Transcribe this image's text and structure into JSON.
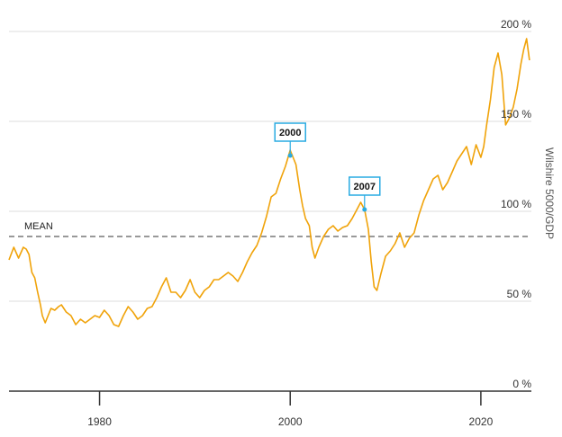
{
  "chart_data": {
    "type": "line",
    "ylabel": "Wilshire 5000/GDP",
    "ylim": [
      0,
      200
    ],
    "xlim": [
      1970.5,
      2025.3
    ],
    "y_ticks": [
      {
        "value": 0,
        "label": "0 %"
      },
      {
        "value": 50,
        "label": "50 %"
      },
      {
        "value": 100,
        "label": "100 %"
      },
      {
        "value": 150,
        "label": "150 %"
      },
      {
        "value": 200,
        "label": "200 %"
      }
    ],
    "x_ticks": [
      {
        "value": 1980,
        "label": "1980"
      },
      {
        "value": 2000,
        "label": "2000"
      },
      {
        "value": 2020,
        "label": "2020"
      }
    ],
    "grid": "horizontal",
    "y_axis_side": "right",
    "line_color": "#f0a30a",
    "reference_line": {
      "label": "MEAN",
      "value": 86,
      "color": "#999999"
    },
    "annotations": [
      {
        "label": "2000",
        "x": 2000.0,
        "y": 131,
        "color": "#29abe2"
      },
      {
        "label": "2007",
        "x": 2007.8,
        "y": 101,
        "color": "#29abe2"
      }
    ],
    "series": [
      {
        "x": [
          1970.5,
          1971.0,
          1971.5,
          1972.0,
          1972.3,
          1972.6,
          1972.9,
          1973.2,
          1973.5,
          1973.8,
          1974.0,
          1974.3,
          1974.6,
          1974.9,
          1975.3,
          1975.7,
          1976.0,
          1976.5,
          1977.0,
          1977.5,
          1978.0,
          1978.5,
          1979.0,
          1979.5,
          1980.0,
          1980.5,
          1981.0,
          1981.5,
          1982.0,
          1982.5,
          1983.0,
          1983.5,
          1984.0,
          1984.5,
          1985.0,
          1985.5,
          1986.0,
          1986.5,
          1987.0,
          1987.5,
          1988.0,
          1988.5,
          1989.0,
          1989.5,
          1990.0,
          1990.5,
          1991.0,
          1991.5,
          1992.0,
          1992.5,
          1993.0,
          1993.5,
          1994.0,
          1994.5,
          1995.0,
          1995.5,
          1996.0,
          1996.5,
          1997.0,
          1997.5,
          1998.0,
          1998.5,
          1999.0,
          1999.5,
          2000.0,
          2000.3,
          2000.6,
          2001.0,
          2001.3,
          2001.6,
          2002.0,
          2002.3,
          2002.6,
          2003.0,
          2003.5,
          2004.0,
          2004.5,
          2005.0,
          2005.5,
          2006.0,
          2006.5,
          2007.0,
          2007.4,
          2007.8,
          2008.2,
          2008.5,
          2008.8,
          2009.1,
          2009.5,
          2010.0,
          2010.5,
          2011.0,
          2011.5,
          2012.0,
          2012.5,
          2013.0,
          2013.5,
          2014.0,
          2014.5,
          2015.0,
          2015.5,
          2016.0,
          2016.5,
          2017.0,
          2017.5,
          2018.0,
          2018.5,
          2019.0,
          2019.5,
          2020.0,
          2020.3,
          2020.6,
          2021.0,
          2021.4,
          2021.8,
          2022.2,
          2022.6,
          2023.0,
          2023.4,
          2023.8,
          2024.2,
          2024.5,
          2024.8,
          2025.1
        ],
        "values": [
          73,
          80,
          74,
          80,
          79,
          76,
          66,
          63,
          55,
          48,
          42,
          38,
          42,
          46,
          45,
          47,
          48,
          44,
          42,
          37,
          40,
          38,
          40,
          42,
          41,
          45,
          42,
          37,
          36,
          42,
          47,
          44,
          40,
          42,
          46,
          47,
          52,
          58,
          63,
          55,
          55,
          52,
          56,
          62,
          55,
          52,
          56,
          58,
          62,
          62,
          64,
          66,
          64,
          61,
          66,
          72,
          77,
          81,
          88,
          97,
          108,
          110,
          118,
          125,
          134,
          130,
          126,
          112,
          103,
          96,
          92,
          80,
          74,
          80,
          86,
          90,
          92,
          89,
          91,
          92,
          96,
          101,
          105,
          101,
          90,
          72,
          58,
          56,
          65,
          75,
          78,
          82,
          88,
          80,
          85,
          88,
          98,
          106,
          112,
          118,
          120,
          112,
          116,
          122,
          128,
          132,
          136,
          126,
          137,
          130,
          136,
          148,
          162,
          180,
          188,
          176,
          148,
          152,
          158,
          168,
          182,
          190,
          196,
          184
        ]
      }
    ]
  }
}
